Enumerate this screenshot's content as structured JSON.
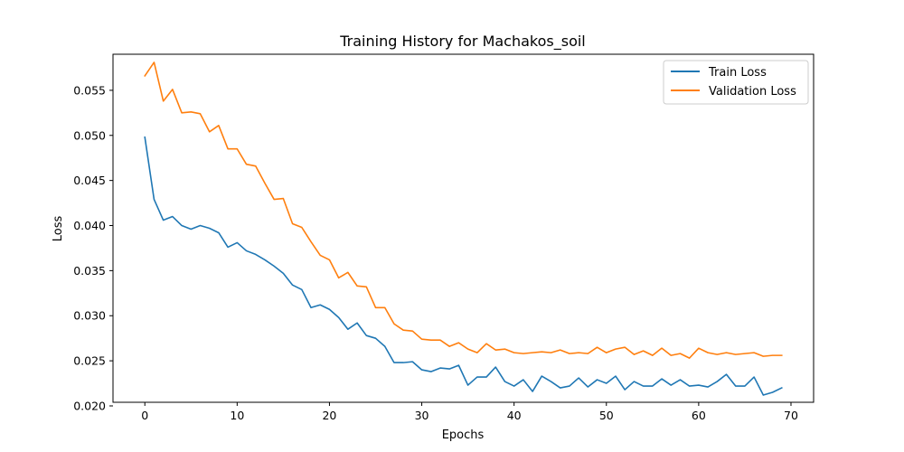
{
  "chart_data": {
    "type": "line",
    "title": "Training History for Machakos_soil",
    "xlabel": "Epochs",
    "ylabel": "Loss",
    "xlim": [
      -3.45,
      72.45
    ],
    "ylim": [
      0.0204,
      0.059
    ],
    "xticks": [
      0,
      10,
      20,
      30,
      40,
      50,
      60,
      70
    ],
    "yticks": [
      0.02,
      0.025,
      0.03,
      0.035,
      0.04,
      0.045,
      0.05,
      0.055
    ],
    "ytick_labels": [
      "0.020",
      "0.025",
      "0.030",
      "0.035",
      "0.040",
      "0.045",
      "0.050",
      "0.055"
    ],
    "legend_position": "top-right",
    "grid": false,
    "x": [
      0,
      1,
      2,
      3,
      4,
      5,
      6,
      7,
      8,
      9,
      10,
      11,
      12,
      13,
      14,
      15,
      16,
      17,
      18,
      19,
      20,
      21,
      22,
      23,
      24,
      25,
      26,
      27,
      28,
      29,
      30,
      31,
      32,
      33,
      34,
      35,
      36,
      37,
      38,
      39,
      40,
      41,
      42,
      43,
      44,
      45,
      46,
      47,
      48,
      49,
      50,
      51,
      52,
      53,
      54,
      55,
      56,
      57,
      58,
      59,
      60,
      61,
      62,
      63,
      64,
      65,
      66,
      67,
      68,
      69
    ],
    "series": [
      {
        "name": "Train Loss",
        "color": "#1f77b4",
        "values": [
          0.0498,
          0.0429,
          0.0406,
          0.041,
          0.04,
          0.0396,
          0.04,
          0.0397,
          0.0392,
          0.0376,
          0.0381,
          0.0372,
          0.0368,
          0.0362,
          0.0355,
          0.0347,
          0.0334,
          0.0329,
          0.0309,
          0.0312,
          0.0307,
          0.0298,
          0.0285,
          0.0292,
          0.0278,
          0.0275,
          0.0266,
          0.0248,
          0.0248,
          0.0249,
          0.024,
          0.0238,
          0.0242,
          0.0241,
          0.0245,
          0.0223,
          0.0232,
          0.0232,
          0.0243,
          0.0227,
          0.0222,
          0.0229,
          0.0216,
          0.0233,
          0.0227,
          0.022,
          0.0222,
          0.0231,
          0.0221,
          0.0229,
          0.0225,
          0.0233,
          0.0218,
          0.0227,
          0.0222,
          0.0222,
          0.023,
          0.0223,
          0.0229,
          0.0222,
          0.0223,
          0.0221,
          0.0227,
          0.0235,
          0.0222,
          0.0222,
          0.0232,
          0.0212,
          0.0215,
          0.022
        ]
      },
      {
        "name": "Validation Loss",
        "color": "#ff7f0e",
        "values": [
          0.0566,
          0.0581,
          0.0538,
          0.0551,
          0.0525,
          0.0526,
          0.0524,
          0.0504,
          0.0511,
          0.0485,
          0.0485,
          0.0468,
          0.0466,
          0.0447,
          0.0429,
          0.043,
          0.0402,
          0.0398,
          0.0382,
          0.0367,
          0.0362,
          0.0342,
          0.0348,
          0.0333,
          0.0332,
          0.0309,
          0.0309,
          0.0291,
          0.0284,
          0.0283,
          0.0274,
          0.0273,
          0.0273,
          0.0266,
          0.027,
          0.0263,
          0.0259,
          0.0269,
          0.0262,
          0.0263,
          0.0259,
          0.0258,
          0.0259,
          0.026,
          0.0259,
          0.0262,
          0.0258,
          0.0259,
          0.0258,
          0.0265,
          0.0259,
          0.0263,
          0.0265,
          0.0257,
          0.0261,
          0.0256,
          0.0264,
          0.0256,
          0.0258,
          0.0253,
          0.0264,
          0.0259,
          0.0257,
          0.0259,
          0.0257,
          0.0258,
          0.0259,
          0.0255,
          0.0256,
          0.0256
        ]
      }
    ]
  }
}
